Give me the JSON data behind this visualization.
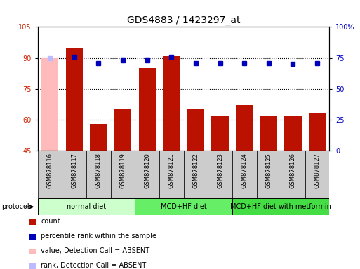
{
  "title": "GDS4883 / 1423297_at",
  "samples": [
    "GSM878116",
    "GSM878117",
    "GSM878118",
    "GSM878119",
    "GSM878120",
    "GSM878121",
    "GSM878122",
    "GSM878123",
    "GSM878124",
    "GSM878125",
    "GSM878126",
    "GSM878127"
  ],
  "count_values": [
    90,
    95,
    58,
    65,
    85,
    91,
    65,
    62,
    67,
    62,
    62,
    63
  ],
  "percentile_values": [
    75,
    76,
    71,
    73,
    73,
    76,
    71,
    71,
    71,
    71,
    70,
    71
  ],
  "absent_index": [
    0
  ],
  "bar_color_normal": "#bb1100",
  "bar_color_absent": "#ffbbbb",
  "dot_color": "#0000bb",
  "dot_color_absent": "#bbbbff",
  "ylim_left": [
    45,
    105
  ],
  "ylim_right": [
    0,
    100
  ],
  "yticks_left": [
    45,
    60,
    75,
    90,
    105
  ],
  "yticks_right": [
    0,
    25,
    50,
    75,
    100
  ],
  "ytick_labels_right": [
    "0",
    "25",
    "50",
    "75",
    "100%"
  ],
  "grid_values": [
    60,
    75,
    90
  ],
  "protocols": [
    {
      "label": "normal diet",
      "start": 0,
      "end": 3,
      "color": "#ccffcc"
    },
    {
      "label": "MCD+HF diet",
      "start": 4,
      "end": 7,
      "color": "#66ee66"
    },
    {
      "label": "MCD+HF diet with metformin",
      "start": 8,
      "end": 11,
      "color": "#44dd44"
    }
  ],
  "legend_items": [
    {
      "color": "#bb1100",
      "label": "count",
      "marker": "square"
    },
    {
      "color": "#0000bb",
      "label": "percentile rank within the sample",
      "marker": "square"
    },
    {
      "color": "#ffbbbb",
      "label": "value, Detection Call = ABSENT",
      "marker": "square"
    },
    {
      "color": "#bbbbff",
      "label": "rank, Detection Call = ABSENT",
      "marker": "square"
    }
  ],
  "title_fontsize": 10,
  "tick_fontsize": 7,
  "label_fontsize": 6,
  "legend_fontsize": 7,
  "protocol_fontsize": 7
}
